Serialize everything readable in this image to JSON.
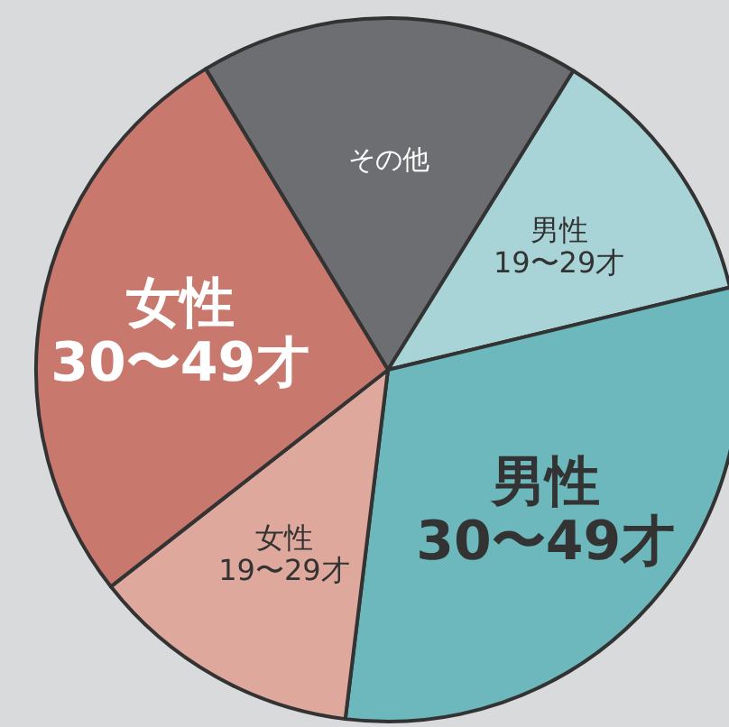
{
  "chart_data": {
    "type": "pie",
    "categories": [
      "その他",
      "男性 19〜29才",
      "男性 30〜49才",
      "女性 19〜29才",
      "女性 30〜49才"
    ],
    "values": [
      17.5,
      12.4,
      30.7,
      12.5,
      26.9
    ],
    "colors": [
      "#6d6e72",
      "#a9d4d7",
      "#6cb8bd",
      "#dea89d",
      "#c8786d"
    ]
  }
}
